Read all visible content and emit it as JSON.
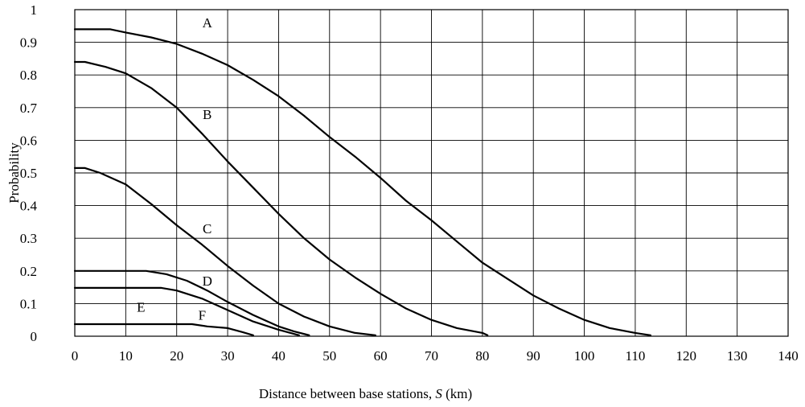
{
  "chart_data": {
    "type": "line",
    "title": "",
    "xlabel_prefix": "Distance between base stations, ",
    "xlabel_var": "S",
    "xlabel_suffix": " (km)",
    "ylabel": "Probability",
    "xlim": [
      0,
      140
    ],
    "ylim": [
      0,
      1
    ],
    "x_ticks": [
      "0",
      "10",
      "20",
      "30",
      "40",
      "50",
      "60",
      "70",
      "80",
      "90",
      "100",
      "110",
      "120",
      "130",
      "140"
    ],
    "y_ticks": [
      "0",
      "0.1",
      "0.2",
      "0.3",
      "0.4",
      "0.5",
      "0.6",
      "0.7",
      "0.8",
      "0.9",
      "1"
    ],
    "grid": true,
    "legend": "none",
    "series": [
      {
        "name": "A",
        "label_at": [
          26,
          0.96
        ],
        "points": [
          [
            0,
            0.94
          ],
          [
            7,
            0.94
          ],
          [
            10,
            0.93
          ],
          [
            15,
            0.915
          ],
          [
            20,
            0.895
          ],
          [
            25,
            0.865
          ],
          [
            30,
            0.83
          ],
          [
            35,
            0.785
          ],
          [
            40,
            0.735
          ],
          [
            45,
            0.675
          ],
          [
            50,
            0.61
          ],
          [
            55,
            0.55
          ],
          [
            60,
            0.485
          ],
          [
            65,
            0.415
          ],
          [
            70,
            0.355
          ],
          [
            75,
            0.29
          ],
          [
            80,
            0.225
          ],
          [
            85,
            0.175
          ],
          [
            90,
            0.125
          ],
          [
            95,
            0.085
          ],
          [
            100,
            0.05
          ],
          [
            105,
            0.025
          ],
          [
            110,
            0.01
          ],
          [
            113,
            0.003
          ]
        ]
      },
      {
        "name": "B",
        "label_at": [
          26,
          0.68
        ],
        "points": [
          [
            0,
            0.84
          ],
          [
            2,
            0.84
          ],
          [
            6,
            0.825
          ],
          [
            10,
            0.805
          ],
          [
            15,
            0.76
          ],
          [
            20,
            0.7
          ],
          [
            25,
            0.62
          ],
          [
            30,
            0.535
          ],
          [
            35,
            0.455
          ],
          [
            40,
            0.375
          ],
          [
            45,
            0.3
          ],
          [
            50,
            0.235
          ],
          [
            55,
            0.18
          ],
          [
            60,
            0.13
          ],
          [
            65,
            0.085
          ],
          [
            70,
            0.05
          ],
          [
            75,
            0.025
          ],
          [
            80,
            0.01
          ],
          [
            81,
            0.003
          ]
        ]
      },
      {
        "name": "C",
        "label_at": [
          26,
          0.33
        ],
        "points": [
          [
            0,
            0.515
          ],
          [
            2,
            0.515
          ],
          [
            5,
            0.5
          ],
          [
            10,
            0.465
          ],
          [
            15,
            0.405
          ],
          [
            20,
            0.34
          ],
          [
            25,
            0.28
          ],
          [
            30,
            0.215
          ],
          [
            35,
            0.155
          ],
          [
            40,
            0.1
          ],
          [
            45,
            0.06
          ],
          [
            50,
            0.03
          ],
          [
            55,
            0.01
          ],
          [
            59,
            0.003
          ]
        ]
      },
      {
        "name": "D",
        "label_at": [
          26,
          0.17
        ],
        "points": [
          [
            0,
            0.2
          ],
          [
            14,
            0.2
          ],
          [
            18,
            0.19
          ],
          [
            22,
            0.17
          ],
          [
            26,
            0.14
          ],
          [
            30,
            0.105
          ],
          [
            35,
            0.065
          ],
          [
            40,
            0.03
          ],
          [
            43,
            0.015
          ],
          [
            46,
            0.003
          ]
        ]
      },
      {
        "name": "E",
        "label_at": [
          13,
          0.09
        ],
        "points": [
          [
            0,
            0.148
          ],
          [
            17,
            0.148
          ],
          [
            20,
            0.14
          ],
          [
            25,
            0.115
          ],
          [
            30,
            0.08
          ],
          [
            35,
            0.045
          ],
          [
            40,
            0.02
          ],
          [
            44,
            0.003
          ]
        ]
      },
      {
        "name": "F",
        "label_at": [
          25,
          0.065
        ],
        "points": [
          [
            0,
            0.037
          ],
          [
            23,
            0.037
          ],
          [
            26,
            0.03
          ],
          [
            30,
            0.025
          ],
          [
            33,
            0.012
          ],
          [
            35,
            0.003
          ]
        ]
      }
    ]
  }
}
